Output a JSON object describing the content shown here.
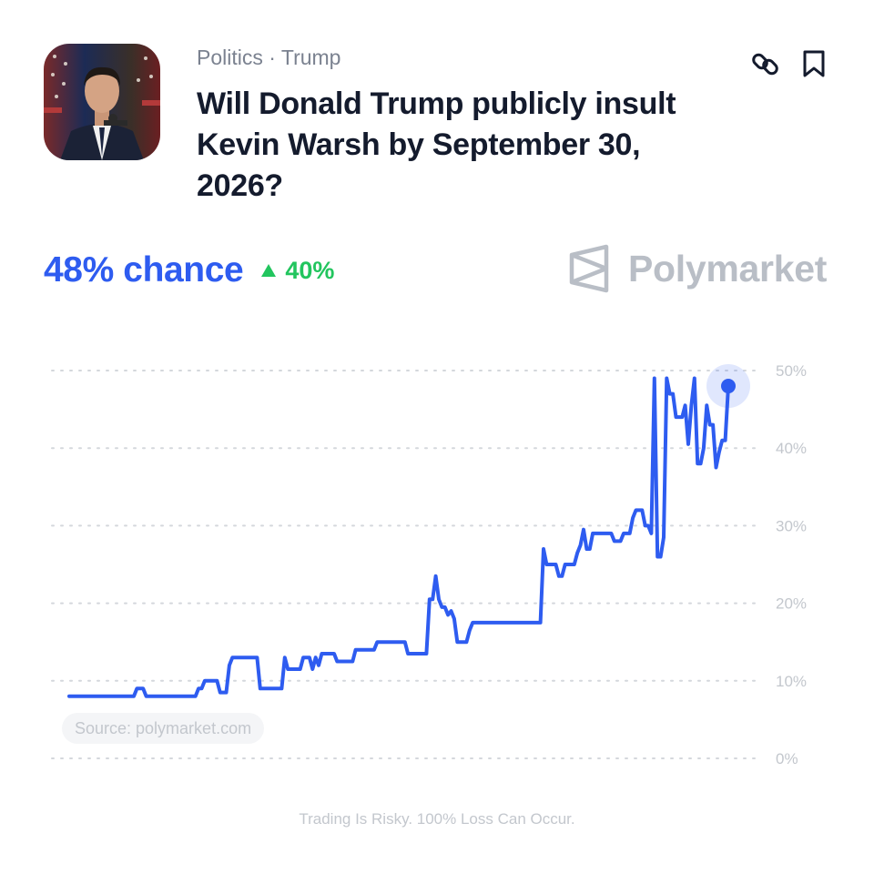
{
  "header": {
    "breadcrumb": "Politics · Trump",
    "title": "Will Donald Trump publicly insult Kevin Warsh by September 30, 2026?"
  },
  "stats": {
    "chance_text": "48% chance",
    "change_text": "40%"
  },
  "brand": {
    "name": "Polymarket"
  },
  "footer": {
    "source": "Source: polymarket.com",
    "disclaimer": "Trading Is Risky. 100% Loss Can Occur."
  },
  "colors": {
    "line": "#2e5cf0",
    "positive": "#22c55e",
    "grid": "#d4d7dc",
    "tick": "#c3c7cd",
    "brand": "#b9bec6"
  },
  "chart_data": {
    "type": "line",
    "y_tick_labels": [
      "0%",
      "10%",
      "20%",
      "30%",
      "40%",
      "50%"
    ],
    "ylim": [
      0,
      50
    ],
    "grid": true,
    "series": [
      {
        "values": [
          8,
          8,
          8,
          8,
          8,
          8,
          8,
          8,
          8,
          8,
          8,
          8,
          8,
          8,
          8,
          8,
          8,
          8,
          8,
          8,
          8,
          8,
          9,
          9,
          9,
          8,
          8,
          8,
          8,
          8,
          8,
          8,
          8,
          8,
          8,
          8,
          8,
          8,
          8,
          8,
          8,
          8,
          9,
          9,
          10,
          10,
          10,
          10,
          10,
          8.5,
          8.5,
          8.5,
          12,
          13,
          13,
          13,
          13,
          13,
          13,
          13,
          13,
          13,
          9,
          9,
          9,
          9,
          9,
          9,
          9,
          9,
          13,
          11.5,
          11.5,
          11.5,
          11.5,
          11.5,
          13,
          13,
          13,
          11.5,
          13,
          12,
          13.5,
          13.5,
          13.5,
          13.5,
          13.5,
          12.5,
          12.5,
          12.5,
          12.5,
          12.5,
          12.5,
          14,
          14,
          14,
          14,
          14,
          14,
          14,
          15,
          15,
          15,
          15,
          15,
          15,
          15,
          15,
          15,
          15,
          13.5,
          13.5,
          13.5,
          13.5,
          13.5,
          13.5,
          13.5,
          20.5,
          20.5,
          23.5,
          20.5,
          19.5,
          19.5,
          18.5,
          19,
          18,
          15,
          15,
          15,
          15,
          16.5,
          17.5,
          17.5,
          17.5,
          17.5,
          17.5,
          17.5,
          17.5,
          17.5,
          17.5,
          17.5,
          17.5,
          17.5,
          17.5,
          17.5,
          17.5,
          17.5,
          17.5,
          17.5,
          17.5,
          17.5,
          17.5,
          17.5,
          17.5,
          27,
          25,
          25,
          25,
          25,
          23.5,
          23.5,
          25,
          25,
          25,
          25,
          26.5,
          27.5,
          29.5,
          27,
          27,
          29,
          29,
          29,
          29,
          29,
          29,
          29,
          28,
          28,
          28,
          29,
          29,
          29,
          31,
          32,
          32,
          32,
          30,
          30,
          29,
          49,
          26,
          26,
          28.5,
          49,
          47,
          47,
          44,
          44,
          44,
          45.5,
          40.5,
          45.5,
          49,
          38,
          38,
          40,
          45.5,
          43,
          43,
          37.5,
          39.5,
          41,
          41,
          48
        ]
      }
    ]
  }
}
